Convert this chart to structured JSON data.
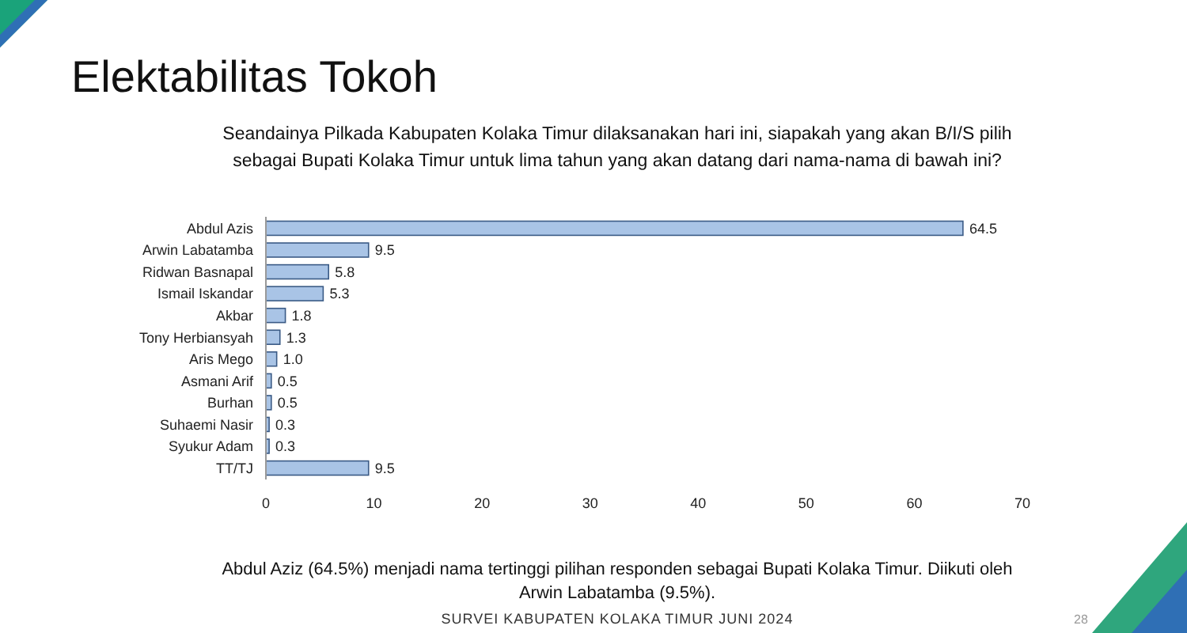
{
  "chart_data": {
    "type": "bar",
    "orientation": "horizontal",
    "title": "Elektabilitas Tokoh",
    "subtitle": "Seandainya Pilkada Kabupaten Kolaka Timur dilaksanakan hari ini, siapakah yang akan B/I/S pilih sebagai Bupati Kolaka Timur untuk lima tahun yang akan datang dari nama-nama di bawah ini?",
    "categories": [
      "Abdul Azis",
      "Arwin Labatamba",
      "Ridwan Basnapal",
      "Ismail Iskandar",
      "Akbar",
      "Tony Herbiansyah",
      "Aris Mego",
      "Asmani Arif",
      "Burhan",
      "Suhaemi Nasir",
      "Syukur Adam",
      "TT/TJ"
    ],
    "values": [
      64.5,
      9.5,
      5.8,
      5.3,
      1.8,
      1.3,
      1.0,
      0.5,
      0.5,
      0.3,
      0.3,
      9.5
    ],
    "value_labels": [
      "64.5",
      "9.5",
      "5.8",
      "5.3",
      "1.8",
      "1.3",
      "1.0",
      "0.5",
      "0.5",
      "0.3",
      "0.3",
      "9.5"
    ],
    "color": "#a9c4e6",
    "xlim": [
      0,
      70
    ],
    "xticks": [
      0,
      10,
      20,
      30,
      40,
      50,
      60,
      70
    ],
    "grid": false,
    "annotations": [
      "Abdul Aziz (64.5%) menjadi nama tertinggi pilihan responden sebagai Bupati Kolaka Timur. Diikuti oleh Arwin Labatamba (9.5%).",
      "SURVEI KABUPATEN KOLAKA TIMUR JUNI 2024",
      "28"
    ]
  }
}
